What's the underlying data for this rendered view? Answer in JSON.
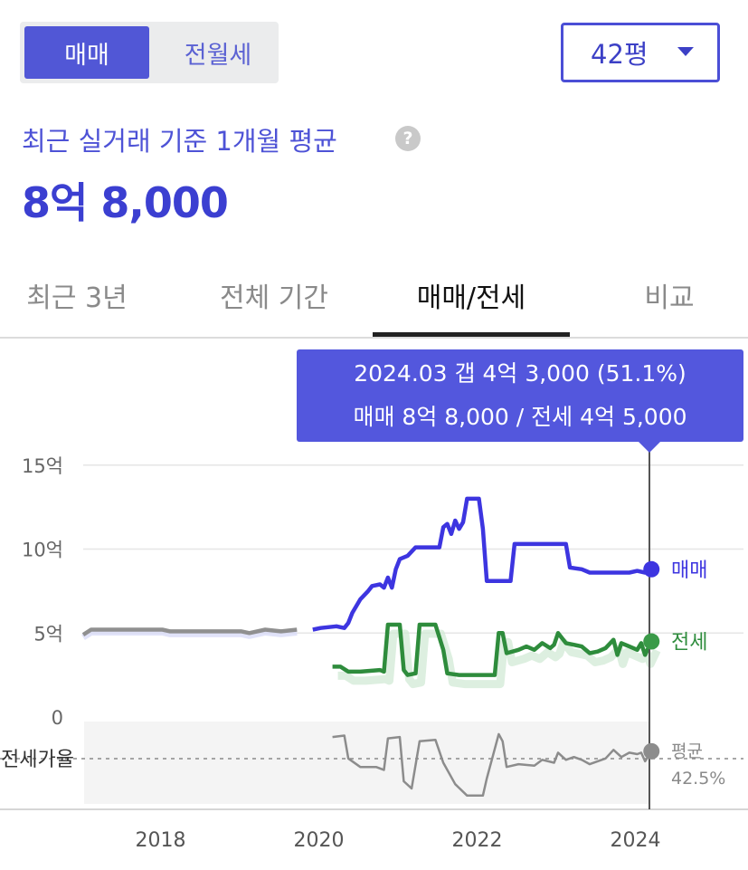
{
  "toggle": {
    "active": "매매",
    "inactive": "전월세"
  },
  "size_select": {
    "value": "42평"
  },
  "summary": {
    "subtitle": "최근 실거래 기준 1개월 평균",
    "help": "?",
    "price": "8억 8,000"
  },
  "tabs": [
    {
      "label": "최근 3년",
      "active": false
    },
    {
      "label": "전체 기간",
      "active": false
    },
    {
      "label": "매매/전세",
      "active": true
    },
    {
      "label": "비교",
      "active": false
    }
  ],
  "tooltip": {
    "line1": "2024.03  갭 4억 3,000 (51.1%)",
    "line2": "매매 8억 8,000 / 전세 4억 5,000"
  },
  "colors": {
    "accent": "#4b4fd6",
    "sale": "#3d35e0",
    "jeonse": "#2e8c3c",
    "ratio": "#8c8c8c",
    "history": "#909090"
  },
  "chart_data": {
    "type": "line",
    "xlabel": "",
    "ylabel": "",
    "x_ticks": [
      "2018",
      "2020",
      "2022",
      "2024"
    ],
    "y_ticks": [
      "15억",
      "10억",
      "5억",
      "0"
    ],
    "ylim": [
      0,
      15
    ],
    "xlim": [
      2017.0,
      2025.2
    ],
    "sub_panel_label": "전세가율",
    "grid": true,
    "series": [
      {
        "name": "매매",
        "unit": "억",
        "points": [
          [
            2017.0,
            4.9
          ],
          [
            2017.1,
            5.2
          ],
          [
            2017.5,
            5.2
          ],
          [
            2018.0,
            5.2
          ],
          [
            2018.1,
            5.1
          ],
          [
            2018.5,
            5.1
          ],
          [
            2019.0,
            5.1
          ],
          [
            2019.1,
            5.0
          ],
          [
            2019.3,
            5.2
          ],
          [
            2019.5,
            5.1
          ],
          [
            2019.7,
            5.2
          ],
          [
            2019.9,
            5.2
          ],
          [
            2020.0,
            5.3
          ],
          [
            2020.2,
            5.4
          ],
          [
            2020.3,
            5.3
          ],
          [
            2020.35,
            5.6
          ],
          [
            2020.4,
            6.2
          ],
          [
            2020.5,
            7.0
          ],
          [
            2020.6,
            7.5
          ],
          [
            2020.65,
            7.8
          ],
          [
            2020.75,
            7.9
          ],
          [
            2020.8,
            7.7
          ],
          [
            2020.85,
            8.3
          ],
          [
            2020.9,
            7.7
          ],
          [
            2020.95,
            8.8
          ],
          [
            2021.0,
            9.4
          ],
          [
            2021.1,
            9.6
          ],
          [
            2021.2,
            10.1
          ],
          [
            2021.5,
            10.1
          ],
          [
            2021.55,
            11.3
          ],
          [
            2021.6,
            11.5
          ],
          [
            2021.65,
            10.9
          ],
          [
            2021.7,
            11.7
          ],
          [
            2021.75,
            11.2
          ],
          [
            2021.8,
            11.6
          ],
          [
            2021.85,
            13.0
          ],
          [
            2022.0,
            13.0
          ],
          [
            2022.05,
            11.2
          ],
          [
            2022.1,
            8.1
          ],
          [
            2022.4,
            8.1
          ],
          [
            2022.45,
            10.3
          ],
          [
            2022.7,
            10.3
          ],
          [
            2023.0,
            10.3
          ],
          [
            2023.1,
            10.3
          ],
          [
            2023.15,
            8.9
          ],
          [
            2023.3,
            8.8
          ],
          [
            2023.4,
            8.6
          ],
          [
            2023.9,
            8.6
          ],
          [
            2024.0,
            8.7
          ],
          [
            2024.1,
            8.6
          ],
          [
            2024.18,
            8.8
          ]
        ]
      },
      {
        "name": "전세",
        "unit": "억",
        "points": [
          [
            2020.15,
            3.0
          ],
          [
            2020.25,
            3.0
          ],
          [
            2020.35,
            2.7
          ],
          [
            2020.5,
            2.7
          ],
          [
            2020.75,
            2.8
          ],
          [
            2020.8,
            2.7
          ],
          [
            2020.85,
            5.5
          ],
          [
            2021.0,
            5.5
          ],
          [
            2021.05,
            2.8
          ],
          [
            2021.1,
            2.5
          ],
          [
            2021.2,
            2.6
          ],
          [
            2021.25,
            5.5
          ],
          [
            2021.45,
            5.5
          ],
          [
            2021.55,
            4.0
          ],
          [
            2021.6,
            2.6
          ],
          [
            2021.75,
            2.5
          ],
          [
            2022.1,
            2.5
          ],
          [
            2022.2,
            2.5
          ],
          [
            2022.25,
            5.0
          ],
          [
            2022.3,
            5.0
          ],
          [
            2022.35,
            3.8
          ],
          [
            2022.5,
            4.0
          ],
          [
            2022.6,
            4.2
          ],
          [
            2022.7,
            4.0
          ],
          [
            2022.8,
            4.4
          ],
          [
            2022.9,
            4.1
          ],
          [
            2022.95,
            4.3
          ],
          [
            2023.0,
            5.0
          ],
          [
            2023.1,
            4.4
          ],
          [
            2023.2,
            4.3
          ],
          [
            2023.3,
            4.2
          ],
          [
            2023.4,
            3.8
          ],
          [
            2023.5,
            3.9
          ],
          [
            2023.6,
            4.1
          ],
          [
            2023.7,
            4.6
          ],
          [
            2023.75,
            3.7
          ],
          [
            2023.8,
            4.4
          ],
          [
            2023.9,
            4.2
          ],
          [
            2024.0,
            4.0
          ],
          [
            2024.05,
            4.4
          ],
          [
            2024.1,
            3.7
          ],
          [
            2024.18,
            4.5
          ]
        ]
      },
      {
        "name": "평균",
        "label_value": "42.5%",
        "unit": "%",
        "points": [
          [
            2020.15,
            63
          ],
          [
            2020.3,
            64
          ],
          [
            2020.35,
            48
          ],
          [
            2020.5,
            42
          ],
          [
            2020.7,
            42
          ],
          [
            2020.8,
            40
          ],
          [
            2020.85,
            62
          ],
          [
            2021.0,
            63
          ],
          [
            2021.05,
            32
          ],
          [
            2021.15,
            27
          ],
          [
            2021.25,
            60
          ],
          [
            2021.45,
            61
          ],
          [
            2021.55,
            45
          ],
          [
            2021.7,
            30
          ],
          [
            2021.85,
            22
          ],
          [
            2022.05,
            22
          ],
          [
            2022.1,
            34
          ],
          [
            2022.25,
            65
          ],
          [
            2022.3,
            60
          ],
          [
            2022.35,
            42
          ],
          [
            2022.5,
            44
          ],
          [
            2022.7,
            43
          ],
          [
            2022.8,
            47
          ],
          [
            2022.95,
            45
          ],
          [
            2023.0,
            52
          ],
          [
            2023.1,
            47
          ],
          [
            2023.2,
            49
          ],
          [
            2023.3,
            47
          ],
          [
            2023.4,
            44
          ],
          [
            2023.6,
            48
          ],
          [
            2023.7,
            54
          ],
          [
            2023.8,
            49
          ],
          [
            2023.9,
            52
          ],
          [
            2024.0,
            51
          ],
          [
            2024.05,
            52
          ],
          [
            2024.1,
            46
          ],
          [
            2024.18,
            53
          ]
        ]
      }
    ],
    "end_labels": [
      "매매",
      "전세"
    ],
    "ratio_end_label": [
      "평균",
      "42.5%"
    ]
  }
}
